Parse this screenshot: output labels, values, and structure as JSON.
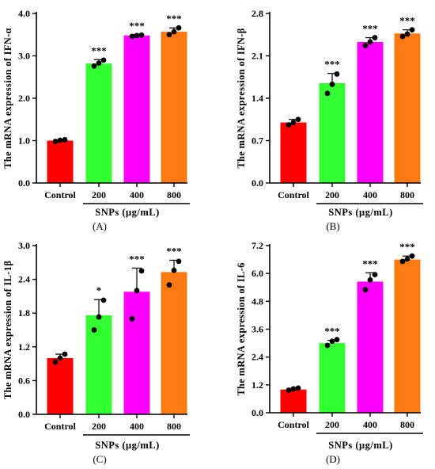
{
  "chart_data": [
    {
      "type": "bar",
      "panel_label": "(A)",
      "ylabel": "The mRNA expression of IFN-α",
      "xlabel": "SNPs (μg/mL)",
      "categories": [
        "Control",
        "200",
        "400",
        "800"
      ],
      "values": [
        1.0,
        2.82,
        3.48,
        3.57
      ],
      "error": [
        0.02,
        0.09,
        0.02,
        0.09
      ],
      "points": [
        [
          0.98,
          1.01,
          1.02
        ],
        [
          2.76,
          2.83,
          2.9
        ],
        [
          3.46,
          3.48,
          3.49
        ],
        [
          3.5,
          3.57,
          3.66
        ]
      ],
      "significance": [
        "",
        "***",
        "***",
        "***"
      ],
      "ylim": [
        0,
        4.0
      ],
      "yticks": [
        "0.0",
        "1.0",
        "2.0",
        "3.0",
        "4.0"
      ],
      "colors": [
        "#ff0000",
        "#33ff33",
        "#ff00ff",
        "#ff7a12"
      ]
    },
    {
      "type": "bar",
      "panel_label": "(B)",
      "ylabel": "The mRNA expression of IFN-β",
      "xlabel": "SNPs (μg/mL)",
      "categories": [
        "Control",
        "200",
        "400",
        "800"
      ],
      "values": [
        1.0,
        1.65,
        2.33,
        2.47
      ],
      "error": [
        0.05,
        0.16,
        0.07,
        0.06
      ],
      "points": [
        [
          0.96,
          1.0,
          1.05
        ],
        [
          1.48,
          1.63,
          1.8
        ],
        [
          2.27,
          2.33,
          2.4
        ],
        [
          2.42,
          2.46,
          2.53
        ]
      ],
      "significance": [
        "",
        "***",
        "***",
        "***"
      ],
      "ylim": [
        0,
        2.8
      ],
      "yticks": [
        "0.0",
        "0.7",
        "1.4",
        "2.1",
        "2.8"
      ],
      "colors": [
        "#ff0000",
        "#33ff33",
        "#ff00ff",
        "#ff7a12"
      ]
    },
    {
      "type": "bar",
      "panel_label": "(C)",
      "ylabel": "The mRNA expression of IL-1β",
      "xlabel": "SNPs (μg/mL)",
      "categories": [
        "Control",
        "200",
        "400",
        "800"
      ],
      "values": [
        1.0,
        1.76,
        2.18,
        2.53
      ],
      "error": [
        0.07,
        0.28,
        0.42,
        0.21
      ],
      "points": [
        [
          0.93,
          1.0,
          1.07
        ],
        [
          1.5,
          1.73,
          2.03
        ],
        [
          1.7,
          2.2,
          2.55
        ],
        [
          2.3,
          2.56,
          2.72
        ]
      ],
      "significance": [
        "",
        "*",
        "***",
        "***"
      ],
      "ylim": [
        0,
        3.0
      ],
      "yticks": [
        "0.0",
        "0.6",
        "1.2",
        "1.8",
        "2.4",
        "3.0"
      ],
      "colors": [
        "#ff0000",
        "#33ff33",
        "#ff00ff",
        "#ff7a12"
      ]
    },
    {
      "type": "bar",
      "panel_label": "(D)",
      "ylabel": "The mRNA expression of IL-6",
      "xlabel": "SNPs (μg/mL)",
      "categories": [
        "Control",
        "200",
        "400",
        "800"
      ],
      "values": [
        1.0,
        3.0,
        5.65,
        6.6
      ],
      "error": [
        0.05,
        0.12,
        0.38,
        0.15
      ],
      "points": [
        [
          0.97,
          1.03,
          1.06
        ],
        [
          2.9,
          3.08,
          3.15
        ],
        [
          5.3,
          5.72,
          5.95
        ],
        [
          6.52,
          6.62,
          6.75
        ]
      ],
      "significance": [
        "",
        "***",
        "***",
        "***"
      ],
      "ylim": [
        0,
        7.2
      ],
      "yticks": [
        "0.0",
        "1.2",
        "2.4",
        "3.6",
        "4.8",
        "6.0",
        "7.2"
      ],
      "colors": [
        "#ff0000",
        "#33ff33",
        "#ff00ff",
        "#ff7a12"
      ]
    }
  ]
}
